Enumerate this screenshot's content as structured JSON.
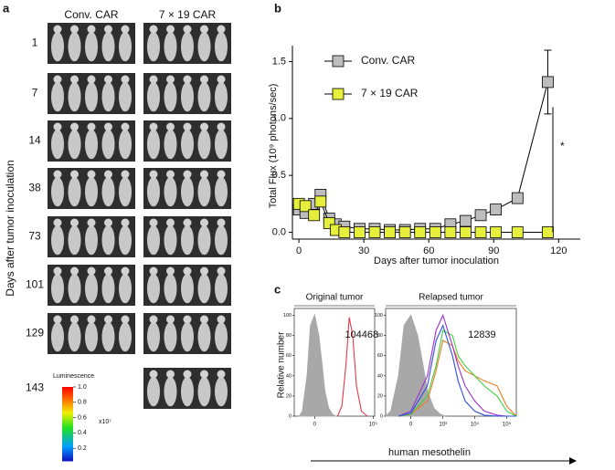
{
  "panel_a": {
    "label": "a",
    "columns": [
      "Conv. CAR",
      "7 × 19 CAR"
    ],
    "days": [
      "1",
      "7",
      "14",
      "38",
      "73",
      "101",
      "129",
      "143"
    ],
    "axis_label": "Days after tumor inoculation",
    "colorbar": {
      "title": "Luminescence",
      "multiplier": "x10⁷",
      "ticks": [
        {
          "value": 1,
          "label": "1.0"
        },
        0.8,
        0.6,
        0.4,
        0.2
      ]
    }
  },
  "chart_data": [
    {
      "type": "line",
      "panel": "b",
      "ylabel": "Total Flux (10⁹ photons/sec)",
      "xlabel": "Days after tumor inoculation",
      "xlim": [
        -3,
        130
      ],
      "ylim": [
        -0.06,
        1.64
      ],
      "xticks": [
        0,
        30,
        60,
        90,
        120
      ],
      "yticks": [
        {
          "value": 0,
          "label": "0.0"
        },
        0.5,
        {
          "value": 1,
          "label": "1.0"
        },
        1.5
      ],
      "legend": "upper left",
      "annotation": "*",
      "series": [
        {
          "name": "Conv. CAR",
          "color": "#bdbdbd",
          "x": [
            0,
            3,
            7,
            10,
            14,
            17,
            21,
            28,
            35,
            42,
            49,
            56,
            63,
            70,
            77,
            84,
            91,
            101,
            115
          ],
          "values": [
            0.2,
            0.17,
            0.25,
            0.33,
            0.12,
            0.07,
            0.05,
            0.03,
            0.03,
            0.02,
            0.02,
            0.03,
            0.03,
            0.07,
            0.1,
            0.15,
            0.2,
            0.3,
            1.32
          ],
          "errors": [
            null,
            null,
            null,
            null,
            null,
            null,
            null,
            null,
            null,
            null,
            null,
            null,
            null,
            null,
            null,
            null,
            null,
            null,
            0.28
          ]
        },
        {
          "name": "7 × 19 CAR",
          "color": "#e6f03c",
          "x": [
            0,
            3,
            7,
            10,
            14,
            17,
            21,
            28,
            35,
            42,
            49,
            56,
            63,
            70,
            77,
            84,
            91,
            101,
            115
          ],
          "values": [
            0.25,
            0.23,
            0.15,
            0.27,
            0.08,
            0.02,
            0,
            0,
            0,
            0,
            0,
            0,
            0,
            0,
            0,
            0,
            0,
            0,
            0
          ]
        }
      ]
    },
    {
      "type": "histogram-curve",
      "panel": "c",
      "title": "Original tumor",
      "annotation": "104468",
      "ylabel": "Relative number",
      "xscale": "biexponential",
      "xlim": [
        -1100,
        120000
      ],
      "ylim": [
        0,
        105
      ],
      "xticks": [
        0,
        {
          "value": 100000,
          "label": "10⁵"
        }
      ],
      "yticks": [
        0,
        20,
        40,
        60,
        80,
        100
      ],
      "series": [
        {
          "color": "#a8a8a8",
          "fill": true,
          "x": [
            -600,
            -400,
            -200,
            -100,
            0,
            100,
            200,
            300,
            500,
            800,
            1200
          ],
          "values": [
            0,
            5,
            40,
            90,
            100,
            80,
            50,
            25,
            8,
            2,
            0
          ]
        },
        {
          "color": "#e8384f",
          "fill": false,
          "x": [
            1500,
            2500,
            4000,
            6000,
            9000,
            14000,
            25000,
            50000
          ],
          "values": [
            0,
            10,
            50,
            98,
            80,
            30,
            5,
            0
          ]
        }
      ]
    },
    {
      "type": "histogram-curve",
      "title": "Relapsed tumor",
      "annotation": "12839",
      "xlabel": "human mesothelin",
      "xscale": "biexponential",
      "xlim": [
        -600,
        200000
      ],
      "ylim": [
        0,
        105
      ],
      "xticks": [
        0,
        {
          "value": 1000,
          "label": "10³"
        },
        {
          "value": 10000,
          "label": "10⁴"
        },
        {
          "value": 100000,
          "label": "10⁵"
        }
      ],
      "yticks": [
        0,
        20,
        40,
        60,
        80,
        100
      ],
      "series": [
        {
          "color": "#a8a8a8",
          "fill": true,
          "x": [
            -600,
            -400,
            -200,
            -100,
            0,
            100,
            200,
            300,
            500,
            800,
            1200
          ],
          "values": [
            0,
            5,
            40,
            90,
            100,
            80,
            50,
            25,
            8,
            2,
            0
          ]
        },
        {
          "color": "#f07820",
          "fill": false,
          "x": [
            -200,
            0,
            300,
            600,
            1000,
            2000,
            3000,
            5000,
            10000,
            20000,
            50000,
            100000,
            200000
          ],
          "values": [
            0,
            2,
            15,
            45,
            75,
            70,
            55,
            45,
            40,
            35,
            30,
            10,
            0
          ]
        },
        {
          "color": "#40d040",
          "fill": false,
          "x": [
            -200,
            0,
            300,
            600,
            1000,
            2000,
            3000,
            5000,
            10000,
            20000,
            50000,
            100000,
            200000
          ],
          "values": [
            0,
            2,
            20,
            50,
            85,
            80,
            60,
            50,
            40,
            30,
            20,
            5,
            0
          ]
        },
        {
          "color": "#9b30d0",
          "fill": false,
          "x": [
            -200,
            0,
            300,
            600,
            1000,
            2000,
            3000,
            5000,
            10000,
            20000,
            50000,
            100000,
            200000
          ],
          "values": [
            0,
            5,
            40,
            85,
            100,
            70,
            50,
            30,
            15,
            5,
            1,
            0,
            0
          ]
        },
        {
          "color": "#3050e0",
          "fill": false,
          "x": [
            -200,
            0,
            300,
            600,
            1000,
            2000,
            3000,
            5000,
            10000,
            20000,
            50000,
            100000,
            200000
          ],
          "values": [
            0,
            3,
            30,
            75,
            90,
            60,
            35,
            15,
            5,
            1,
            0,
            0,
            0
          ]
        }
      ]
    }
  ]
}
